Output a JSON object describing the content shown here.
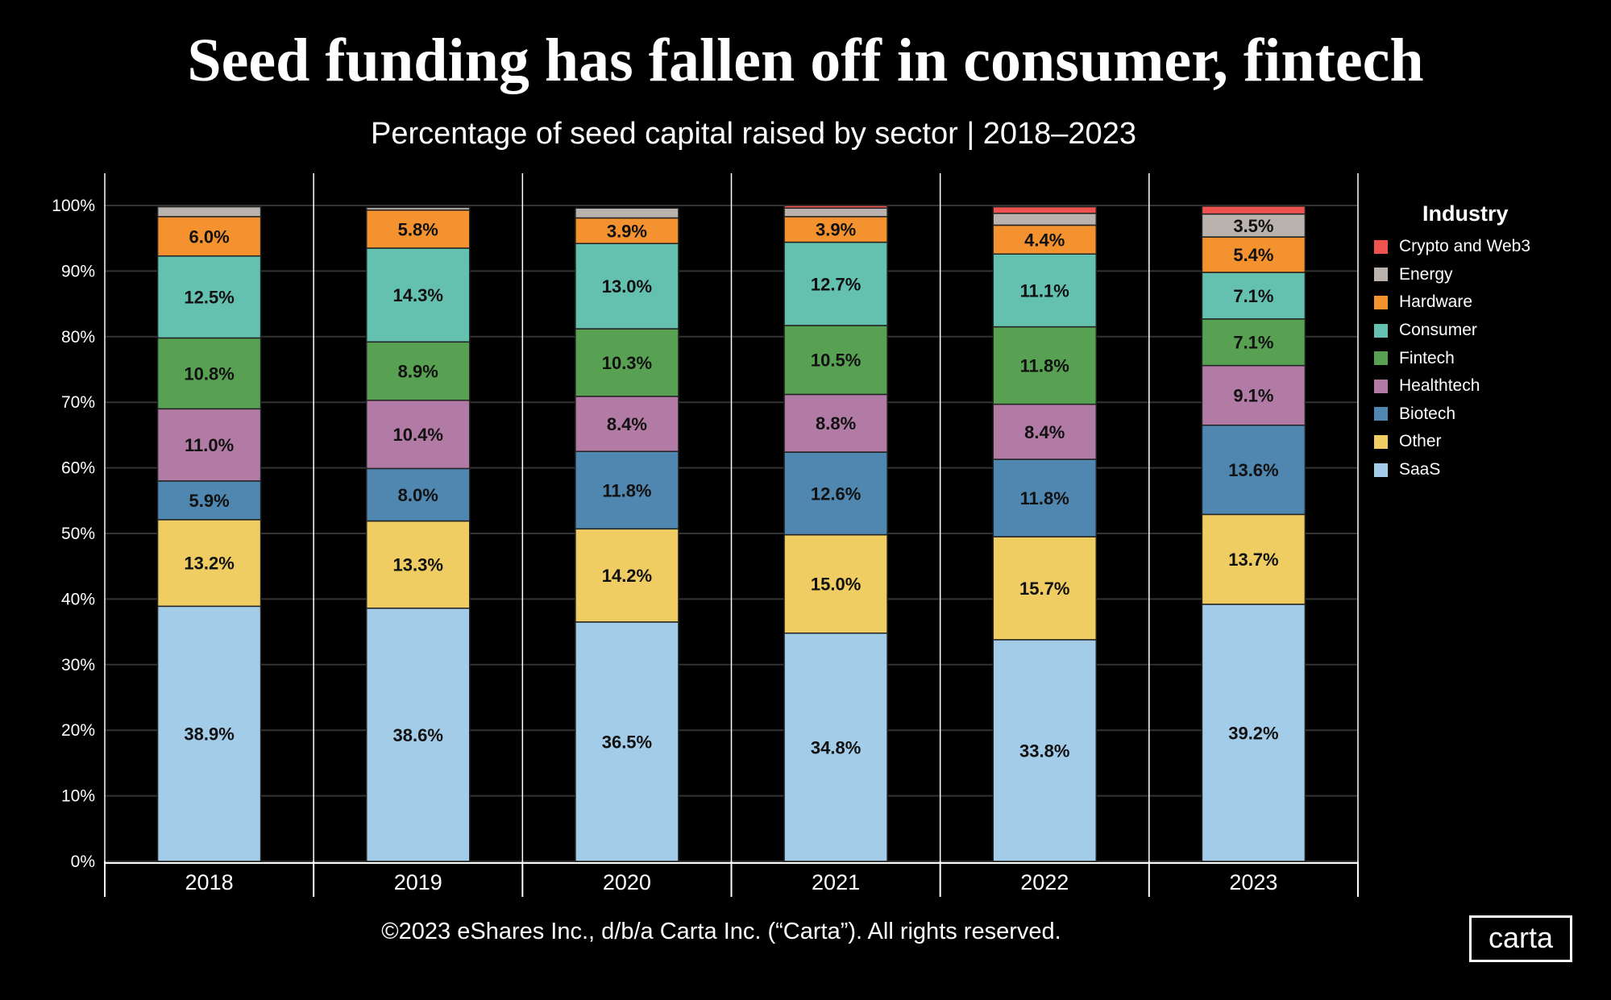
{
  "chart_data": {
    "type": "bar",
    "stacked": true,
    "title": "Seed funding has fallen off in consumer, fintech",
    "subtitle": "Percentage of seed capital raised  by sector | 2018–2023",
    "categories": [
      "2018",
      "2019",
      "2020",
      "2021",
      "2022",
      "2023"
    ],
    "ylim": [
      0,
      100
    ],
    "yticks": [
      "0%",
      "10%",
      "20%",
      "30%",
      "40%",
      "50%",
      "60%",
      "70%",
      "80%",
      "90%",
      "100%"
    ],
    "grid": true,
    "legend_title": "Industry",
    "legend_position": "right",
    "series": [
      {
        "name": "SaaS",
        "color": "#a3cce9",
        "values": [
          38.9,
          38.6,
          36.5,
          34.8,
          33.8,
          39.2
        ],
        "labels": [
          "38.9%",
          "38.6%",
          "36.5%",
          "34.8%",
          "33.8%",
          "39.2%"
        ]
      },
      {
        "name": "Other",
        "color": "#f0cd62",
        "values": [
          13.2,
          13.3,
          14.2,
          15.0,
          15.7,
          13.7
        ],
        "labels": [
          "13.2%",
          "13.3%",
          "14.2%",
          "15.0%",
          "15.7%",
          "13.7%"
        ]
      },
      {
        "name": "Biotech",
        "color": "#4f87b0",
        "values": [
          5.9,
          8.0,
          11.8,
          12.6,
          11.8,
          13.6
        ],
        "labels": [
          "5.9%",
          "8.0%",
          "11.8%",
          "12.6%",
          "11.8%",
          "13.6%"
        ]
      },
      {
        "name": "Healthtech",
        "color": "#b27ba6",
        "values": [
          11.0,
          10.4,
          8.4,
          8.8,
          8.4,
          9.1
        ],
        "labels": [
          "11.0%",
          "10.4%",
          "8.4%",
          "8.8%",
          "8.4%",
          "9.1%"
        ]
      },
      {
        "name": "Fintech",
        "color": "#58a152",
        "values": [
          10.8,
          8.9,
          10.3,
          10.5,
          11.8,
          7.1
        ],
        "labels": [
          "10.8%",
          "8.9%",
          "10.3%",
          "10.5%",
          "11.8%",
          "7.1%"
        ]
      },
      {
        "name": "Consumer",
        "color": "#64c1b0",
        "values": [
          12.5,
          14.3,
          13.0,
          12.7,
          11.1,
          7.1
        ],
        "labels": [
          "12.5%",
          "14.3%",
          "13.0%",
          "12.7%",
          "11.1%",
          "7.1%"
        ]
      },
      {
        "name": "Hardware",
        "color": "#f3922e",
        "values": [
          6.0,
          5.8,
          3.9,
          3.9,
          4.4,
          5.4
        ],
        "labels": [
          "6.0%",
          "5.8%",
          "3.9%",
          "3.9%",
          "4.4%",
          "5.4%"
        ]
      },
      {
        "name": "Energy",
        "color": "#bab3ad",
        "values": [
          1.5,
          0.4,
          1.5,
          1.3,
          1.8,
          3.5
        ],
        "labels": [
          "",
          "",
          "",
          "",
          "",
          "3.5%"
        ]
      },
      {
        "name": "Crypto and Web3",
        "color": "#ee5350",
        "values": [
          0,
          0,
          0,
          0.4,
          1.0,
          1.2
        ],
        "labels": [
          "",
          "",
          "",
          "",
          "",
          ""
        ]
      }
    ]
  },
  "footer": "©2023 eShares Inc., d/b/a Carta Inc. (“Carta”). All rights reserved.",
  "logo": "carta"
}
